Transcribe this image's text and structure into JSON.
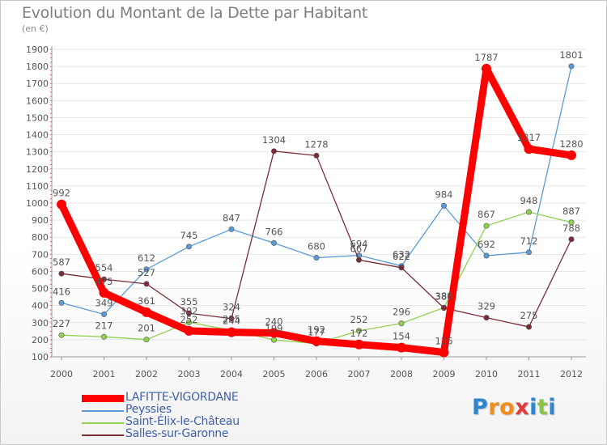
{
  "chart_data": {
    "type": "line",
    "title": "Evolution du Montant de la Dette par Habitant",
    "subtitle": "(en €)",
    "xlabel": "",
    "ylabel": "",
    "ylim": [
      100,
      1900
    ],
    "yticks": [
      100,
      200,
      300,
      400,
      500,
      600,
      700,
      800,
      900,
      1000,
      1100,
      1200,
      1300,
      1400,
      1500,
      1600,
      1700,
      1800,
      1900
    ],
    "categories": [
      "2000",
      "2001",
      "2002",
      "2003",
      "2004",
      "2005",
      "2006",
      "2007",
      "2008",
      "2009",
      "2010",
      "2011",
      "2012"
    ],
    "series": [
      {
        "name": "LAFITTE-VIGORDANE",
        "color": "#ff0000",
        "values": [
          992,
          475,
          361,
          252,
          244,
          240,
          192,
          172,
          154,
          126,
          1787,
          1317,
          1280
        ],
        "labels": [
          "992",
          "475",
          "361",
          "252",
          "244",
          "240",
          "192",
          "172",
          "154",
          "126",
          "1787",
          "1317",
          "1280"
        ]
      },
      {
        "name": "Peyssies",
        "color": "#5b9bd5",
        "values": [
          416,
          349,
          612,
          745,
          847,
          766,
          680,
          694,
          632,
          984,
          692,
          712,
          1801
        ],
        "labels": [
          "416",
          "349",
          "612",
          "745",
          "847",
          "766",
          "680",
          "694",
          "632",
          "984",
          "692",
          "712",
          "1801"
        ]
      },
      {
        "name": "Saint-Élix-le-Château",
        "color": "#92d050",
        "values": [
          227,
          217,
          201,
          302,
          255,
          199,
          177,
          252,
          296,
          388,
          867,
          948,
          887
        ],
        "labels": [
          "227",
          "217",
          "201",
          "302",
          "255",
          "199",
          "177",
          "252",
          "296",
          "388",
          "867",
          "948",
          "887"
        ]
      },
      {
        "name": "Salles-sur-Garonne",
        "color": "#7b2c36",
        "values": [
          587,
          554,
          527,
          355,
          324,
          1304,
          1278,
          667,
          622,
          386,
          329,
          275,
          788
        ],
        "labels": [
          "587",
          "554",
          "527",
          "355",
          "324",
          "1304",
          "1278",
          "667",
          "622",
          "386",
          "329",
          "275",
          "788"
        ]
      }
    ]
  },
  "legend": {
    "items": [
      {
        "name": "LAFITTE-VIGORDANE",
        "color": "#ff0000"
      },
      {
        "name": "Peyssies",
        "color": "#5b9bd5"
      },
      {
        "name": "Saint-Élix-le-Château",
        "color": "#92d050"
      },
      {
        "name": "Salles-sur-Garonne",
        "color": "#7b2c36"
      }
    ]
  },
  "logo": {
    "letters": [
      "P",
      "r",
      "o",
      "x",
      "i",
      "t",
      "i"
    ],
    "colors": [
      "#2e86d1",
      "#f28c1a",
      "#f28c1a",
      "#e23a3a",
      "#2e86d1",
      "#8bc34a",
      "#2e86d1"
    ]
  }
}
